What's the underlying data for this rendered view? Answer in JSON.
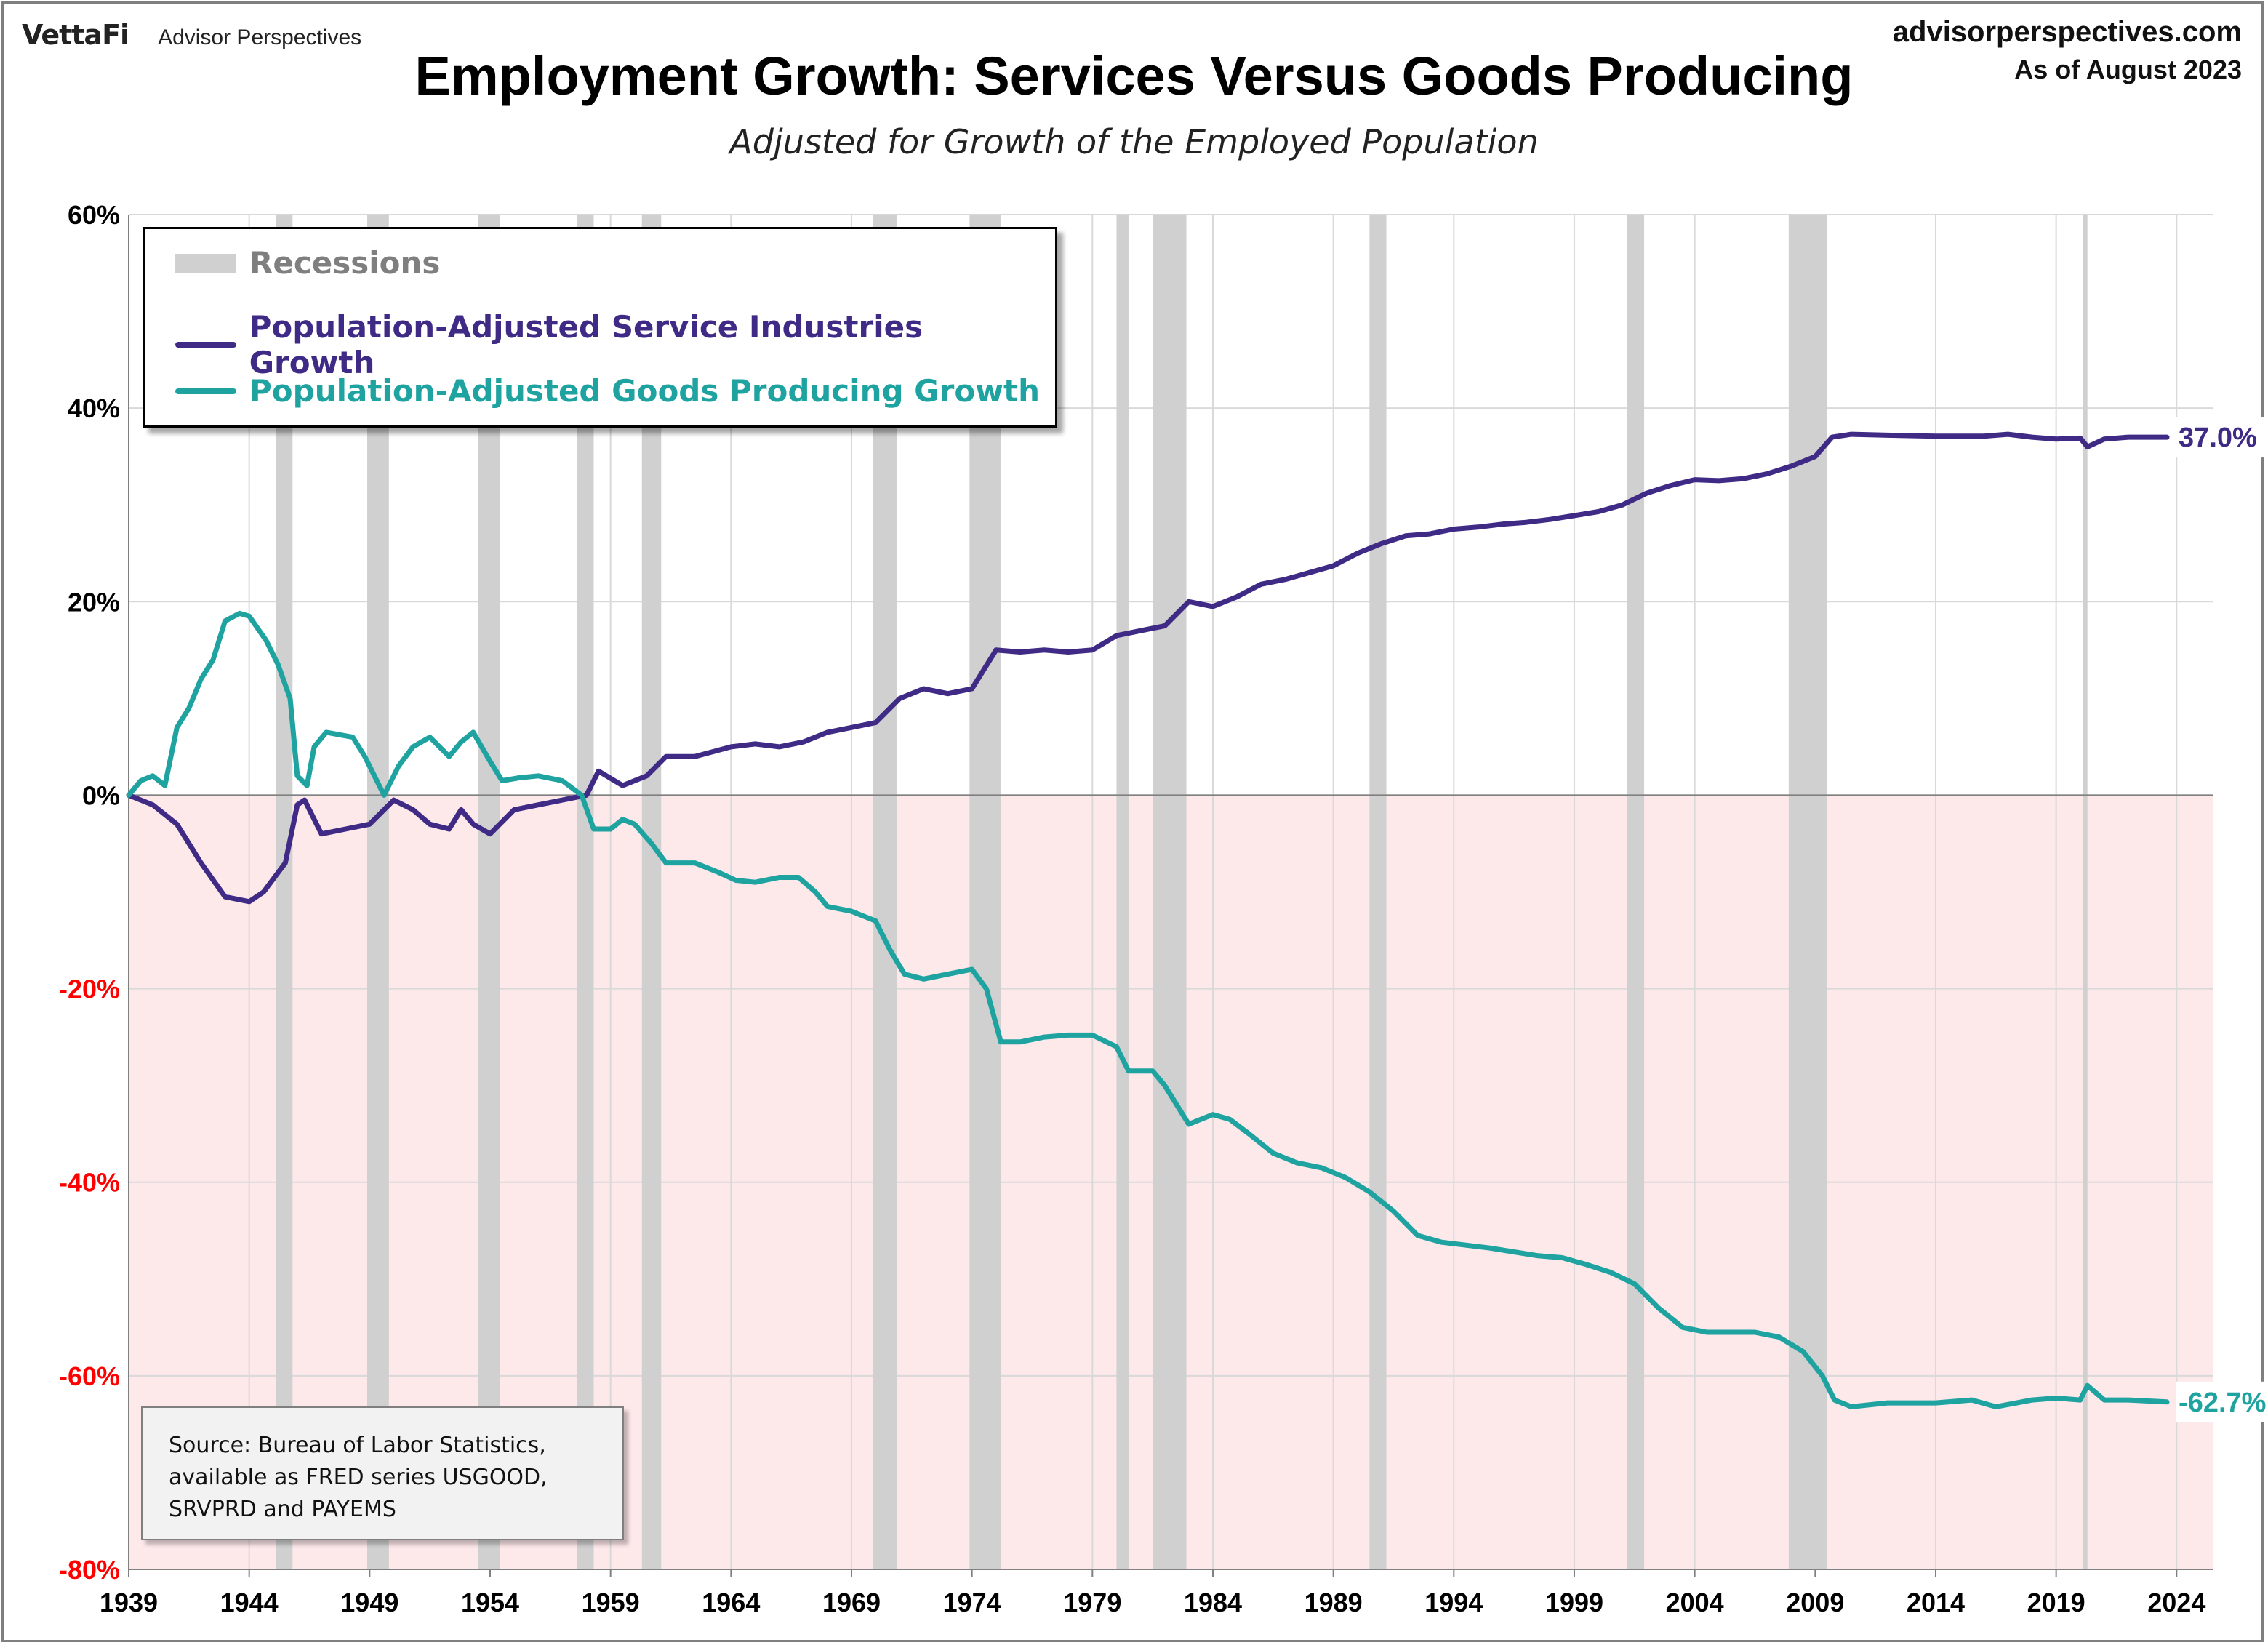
{
  "brand": {
    "logo": "VettaFi",
    "product": "Advisor Perspectives"
  },
  "site": {
    "url": "advisorperspectives.com",
    "as_of": "As of August 2023"
  },
  "source_note": [
    "Source: Bureau of Labor Statistics,",
    "available as FRED series USGOOD,",
    "SRVPRD and PAYEMS"
  ],
  "colors": {
    "services": "#3f2a86",
    "goods": "#1fa3a0",
    "recession": "#d0d0d0",
    "negative_band": "#fde8ea",
    "negative_tick": "#ff0000"
  },
  "chart_data": {
    "type": "line",
    "title": "Employment Growth: Services Versus Goods Producing",
    "subtitle": "Adjusted for Growth of the Employed Population",
    "xlim": [
      1939,
      2025.5
    ],
    "ylim": [
      -80,
      60
    ],
    "x_ticks": [
      1939,
      1944,
      1949,
      1954,
      1959,
      1964,
      1969,
      1974,
      1979,
      1984,
      1989,
      1994,
      1999,
      2004,
      2009,
      2014,
      2019,
      2024
    ],
    "y_ticks": [
      60,
      40,
      20,
      0,
      -20,
      -40,
      -60,
      -80
    ],
    "y_tick_labels": [
      "60%",
      "40%",
      "20%",
      "0%",
      "-20%",
      "-40%",
      "-60%",
      "-80%"
    ],
    "grid": true,
    "legend_placement": "top-left",
    "legend": {
      "recession_label": "Recessions"
    },
    "recessions": [
      [
        1945.1,
        1945.8
      ],
      [
        1948.9,
        1949.8
      ],
      [
        1953.5,
        1954.4
      ],
      [
        1957.6,
        1958.3
      ],
      [
        1960.3,
        1961.1
      ],
      [
        1969.9,
        1970.9
      ],
      [
        1973.9,
        1975.2
      ],
      [
        1980.0,
        1980.5
      ],
      [
        1981.5,
        1982.9
      ],
      [
        1990.5,
        1991.2
      ],
      [
        2001.2,
        2001.9
      ],
      [
        2007.9,
        2009.5
      ],
      [
        2020.1,
        2020.3
      ]
    ],
    "series": [
      {
        "name": "Population-Adjusted Service Industries Growth",
        "end_label": "37.0%",
        "points": [
          [
            1939,
            0
          ],
          [
            1940,
            -1
          ],
          [
            1941,
            -3
          ],
          [
            1942,
            -7
          ],
          [
            1943,
            -10.5
          ],
          [
            1944,
            -11
          ],
          [
            1944.6,
            -10
          ],
          [
            1945.5,
            -7
          ],
          [
            1946,
            -1
          ],
          [
            1946.3,
            -0.5
          ],
          [
            1947,
            -4
          ],
          [
            1948,
            -3.5
          ],
          [
            1949,
            -3
          ],
          [
            1950,
            -0.5
          ],
          [
            1950.8,
            -1.5
          ],
          [
            1951.5,
            -3
          ],
          [
            1952.3,
            -3.5
          ],
          [
            1952.8,
            -1.5
          ],
          [
            1953.3,
            -3
          ],
          [
            1954,
            -4
          ],
          [
            1955,
            -1.5
          ],
          [
            1956,
            -1
          ],
          [
            1957,
            -0.5
          ],
          [
            1958,
            0
          ],
          [
            1958.5,
            2.5
          ],
          [
            1959.5,
            1
          ],
          [
            1960.5,
            2
          ],
          [
            1961.3,
            4
          ],
          [
            1962.5,
            4
          ],
          [
            1964,
            5
          ],
          [
            1965,
            5.3
          ],
          [
            1966,
            5
          ],
          [
            1967,
            5.5
          ],
          [
            1968,
            6.5
          ],
          [
            1969,
            7
          ],
          [
            1970,
            7.5
          ],
          [
            1971,
            10
          ],
          [
            1972,
            11
          ],
          [
            1973,
            10.5
          ],
          [
            1974,
            11
          ],
          [
            1975,
            15
          ],
          [
            1976,
            14.8
          ],
          [
            1977,
            15
          ],
          [
            1978,
            14.8
          ],
          [
            1979,
            15
          ],
          [
            1980,
            16.5
          ],
          [
            1981,
            17
          ],
          [
            1982,
            17.5
          ],
          [
            1983,
            20
          ],
          [
            1984,
            19.5
          ],
          [
            1985,
            20.5
          ],
          [
            1986,
            21.8
          ],
          [
            1987,
            22.3
          ],
          [
            1988,
            23
          ],
          [
            1989,
            23.7
          ],
          [
            1990,
            25
          ],
          [
            1991,
            26
          ],
          [
            1992,
            26.8
          ],
          [
            1993,
            27
          ],
          [
            1994,
            27.5
          ],
          [
            1995,
            27.7
          ],
          [
            1996,
            28
          ],
          [
            1997,
            28.2
          ],
          [
            1998,
            28.5
          ],
          [
            1999,
            28.9
          ],
          [
            2000,
            29.3
          ],
          [
            2001,
            30
          ],
          [
            2002,
            31.2
          ],
          [
            2003,
            32
          ],
          [
            2004,
            32.6
          ],
          [
            2005,
            32.5
          ],
          [
            2006,
            32.7
          ],
          [
            2007,
            33.2
          ],
          [
            2008,
            34
          ],
          [
            2009,
            35
          ],
          [
            2009.7,
            37
          ],
          [
            2010.5,
            37.3
          ],
          [
            2012,
            37.2
          ],
          [
            2014,
            37.1
          ],
          [
            2016,
            37.1
          ],
          [
            2017,
            37.3
          ],
          [
            2018,
            37.0
          ],
          [
            2019,
            36.8
          ],
          [
            2020,
            36.9
          ],
          [
            2020.3,
            36
          ],
          [
            2021,
            36.8
          ],
          [
            2022,
            37
          ],
          [
            2023.6,
            37
          ]
        ]
      },
      {
        "name": "Population-Adjusted Goods Producing Growth",
        "end_label": "-62.7%",
        "points": [
          [
            1939,
            0
          ],
          [
            1939.5,
            1.5
          ],
          [
            1940,
            2
          ],
          [
            1940.5,
            1
          ],
          [
            1941,
            7
          ],
          [
            1941.5,
            9
          ],
          [
            1942,
            12
          ],
          [
            1942.5,
            14
          ],
          [
            1943,
            18
          ],
          [
            1943.6,
            18.8
          ],
          [
            1944,
            18.5
          ],
          [
            1944.7,
            16
          ],
          [
            1945.2,
            13.5
          ],
          [
            1945.7,
            10
          ],
          [
            1946.0,
            2
          ],
          [
            1946.4,
            1
          ],
          [
            1946.7,
            5
          ],
          [
            1947.2,
            6.5
          ],
          [
            1948.3,
            6
          ],
          [
            1948.8,
            4
          ],
          [
            1949.6,
            0
          ],
          [
            1950.2,
            3
          ],
          [
            1950.8,
            5
          ],
          [
            1951.5,
            6
          ],
          [
            1952.3,
            4
          ],
          [
            1952.8,
            5.5
          ],
          [
            1953.3,
            6.5
          ],
          [
            1954.0,
            3.5
          ],
          [
            1954.5,
            1.5
          ],
          [
            1955.2,
            1.8
          ],
          [
            1956.0,
            2
          ],
          [
            1957.0,
            1.5
          ],
          [
            1957.8,
            0
          ],
          [
            1958.3,
            -3.5
          ],
          [
            1959.0,
            -3.5
          ],
          [
            1959.5,
            -2.5
          ],
          [
            1960.0,
            -3
          ],
          [
            1960.7,
            -5
          ],
          [
            1961.3,
            -7
          ],
          [
            1962.5,
            -7
          ],
          [
            1963.5,
            -8
          ],
          [
            1964.2,
            -8.8
          ],
          [
            1965.0,
            -9
          ],
          [
            1966.0,
            -8.5
          ],
          [
            1966.8,
            -8.5
          ],
          [
            1967.5,
            -10
          ],
          [
            1968.0,
            -11.5
          ],
          [
            1969.0,
            -12
          ],
          [
            1970.0,
            -13
          ],
          [
            1970.6,
            -16
          ],
          [
            1971.2,
            -18.5
          ],
          [
            1972.0,
            -19
          ],
          [
            1973.0,
            -18.5
          ],
          [
            1974.0,
            -18
          ],
          [
            1974.6,
            -20
          ],
          [
            1975.2,
            -25.5
          ],
          [
            1976.0,
            -25.5
          ],
          [
            1977.0,
            -25
          ],
          [
            1978.0,
            -24.8
          ],
          [
            1979.0,
            -24.8
          ],
          [
            1980.0,
            -26
          ],
          [
            1980.5,
            -28.5
          ],
          [
            1981.5,
            -28.5
          ],
          [
            1982.0,
            -30
          ],
          [
            1983.0,
            -34
          ],
          [
            1984.0,
            -33
          ],
          [
            1984.7,
            -33.5
          ],
          [
            1985.5,
            -35
          ],
          [
            1986.5,
            -37
          ],
          [
            1987.5,
            -38
          ],
          [
            1988.5,
            -38.5
          ],
          [
            1989.5,
            -39.5
          ],
          [
            1990.5,
            -41
          ],
          [
            1991.5,
            -43
          ],
          [
            1992.5,
            -45.5
          ],
          [
            1993.5,
            -46.2
          ],
          [
            1994.5,
            -46.5
          ],
          [
            1995.5,
            -46.8
          ],
          [
            1996.5,
            -47.2
          ],
          [
            1997.5,
            -47.6
          ],
          [
            1998.5,
            -47.8
          ],
          [
            1999.5,
            -48.5
          ],
          [
            2000.5,
            -49.3
          ],
          [
            2001.5,
            -50.5
          ],
          [
            2002.5,
            -53
          ],
          [
            2003.5,
            -55
          ],
          [
            2004.5,
            -55.5
          ],
          [
            2005.5,
            -55.5
          ],
          [
            2006.5,
            -55.5
          ],
          [
            2007.5,
            -56
          ],
          [
            2008.5,
            -57.5
          ],
          [
            2009.3,
            -60
          ],
          [
            2009.8,
            -62.5
          ],
          [
            2010.5,
            -63.2
          ],
          [
            2012,
            -62.8
          ],
          [
            2014,
            -62.8
          ],
          [
            2015.5,
            -62.5
          ],
          [
            2016.5,
            -63.2
          ],
          [
            2018,
            -62.5
          ],
          [
            2019,
            -62.3
          ],
          [
            2020,
            -62.5
          ],
          [
            2020.3,
            -61
          ],
          [
            2021,
            -62.5
          ],
          [
            2022,
            -62.5
          ],
          [
            2023.6,
            -62.7
          ]
        ]
      }
    ]
  }
}
